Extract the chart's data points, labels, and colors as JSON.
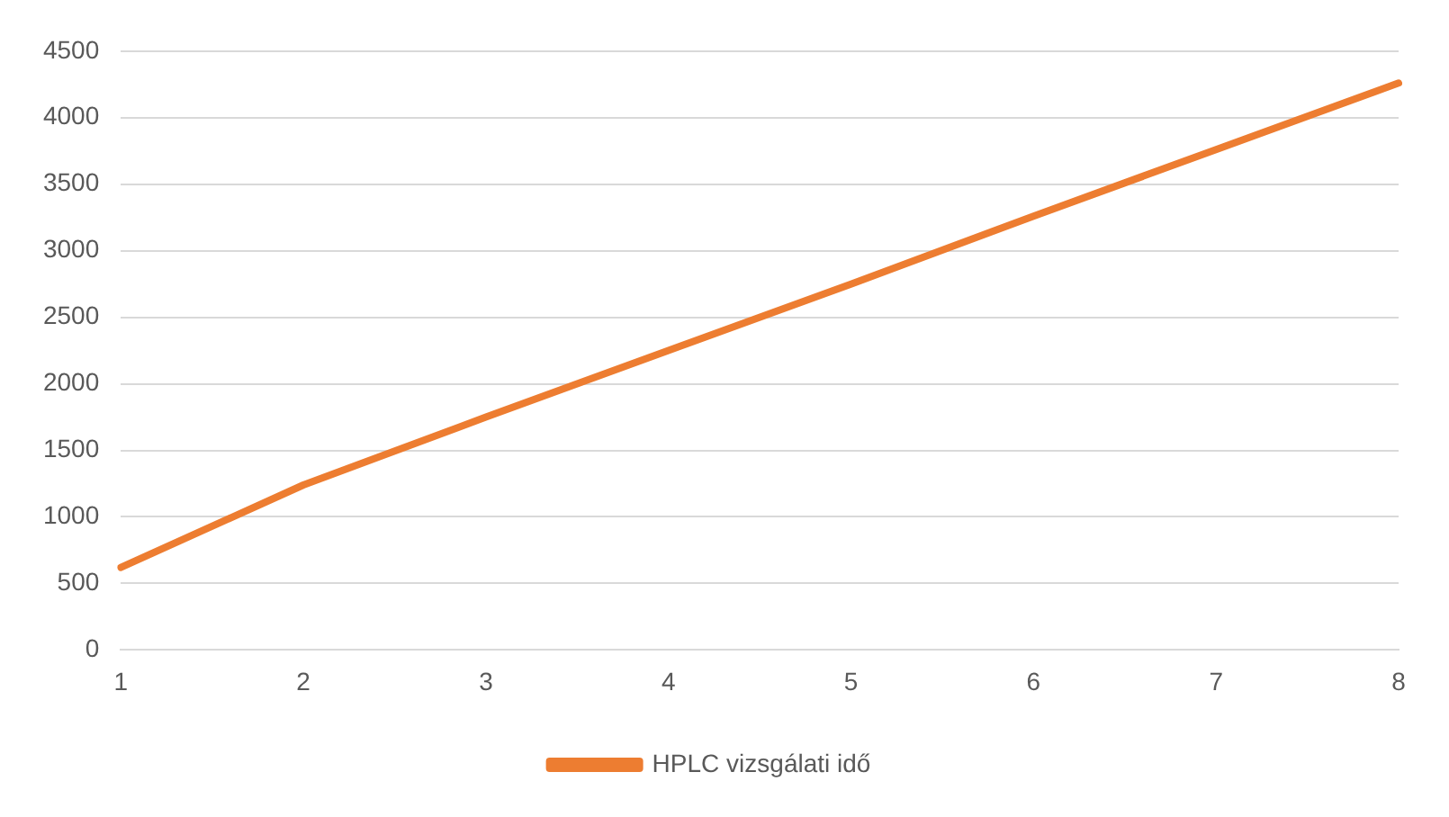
{
  "chart_data": {
    "type": "line",
    "categories": [
      "1",
      "2",
      "3",
      "4",
      "5",
      "6",
      "7",
      "8"
    ],
    "series": [
      {
        "name": "HPLC vizsgálati idő",
        "color": "#ed7d31",
        "values": [
          620,
          1240,
          1750,
          2250,
          2750,
          3260,
          3760,
          4260
        ]
      }
    ],
    "ylim": [
      0,
      4500
    ],
    "yticks": [
      0,
      500,
      1000,
      1500,
      2000,
      2500,
      3000,
      3500,
      4000,
      4500
    ],
    "grid": "y",
    "legend": "bottom",
    "marker": "none",
    "line_style": "solid"
  }
}
